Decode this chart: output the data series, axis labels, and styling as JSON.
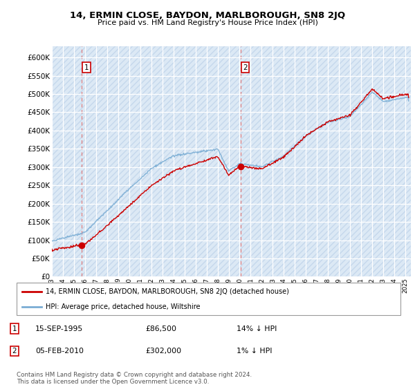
{
  "title": "14, ERMIN CLOSE, BAYDON, MARLBOROUGH, SN8 2JQ",
  "subtitle": "Price paid vs. HM Land Registry's House Price Index (HPI)",
  "ylim": [
    0,
    630000
  ],
  "yticks": [
    0,
    50000,
    100000,
    150000,
    200000,
    250000,
    300000,
    350000,
    400000,
    450000,
    500000,
    550000,
    600000
  ],
  "xmin_year": 1993,
  "xmax_year": 2025.5,
  "xtick_years": [
    1993,
    1994,
    1995,
    1996,
    1997,
    1998,
    1999,
    2000,
    2001,
    2002,
    2003,
    2004,
    2005,
    2006,
    2007,
    2008,
    2009,
    2010,
    2011,
    2012,
    2013,
    2014,
    2015,
    2016,
    2017,
    2018,
    2019,
    2020,
    2021,
    2022,
    2023,
    2024,
    2025
  ],
  "sale1_year": 1995.71,
  "sale1_price": 86500,
  "sale2_year": 2010.09,
  "sale2_price": 302000,
  "sale1_date": "15-SEP-1995",
  "sale1_pct": "14% ↓ HPI",
  "sale2_date": "05-FEB-2010",
  "sale2_pct": "1% ↓ HPI",
  "legend_line1": "14, ERMIN CLOSE, BAYDON, MARLBOROUGH, SN8 2JQ (detached house)",
  "legend_line2": "HPI: Average price, detached house, Wiltshire",
  "footer": "Contains HM Land Registry data © Crown copyright and database right 2024.\nThis data is licensed under the Open Government Licence v3.0.",
  "sale_color": "#cc0000",
  "hpi_color": "#7aadd4",
  "bg_color": "#dce9f5",
  "vline_color": "#e08080",
  "box_color": "#cc0000",
  "hatch_color": "#c5d8ec"
}
